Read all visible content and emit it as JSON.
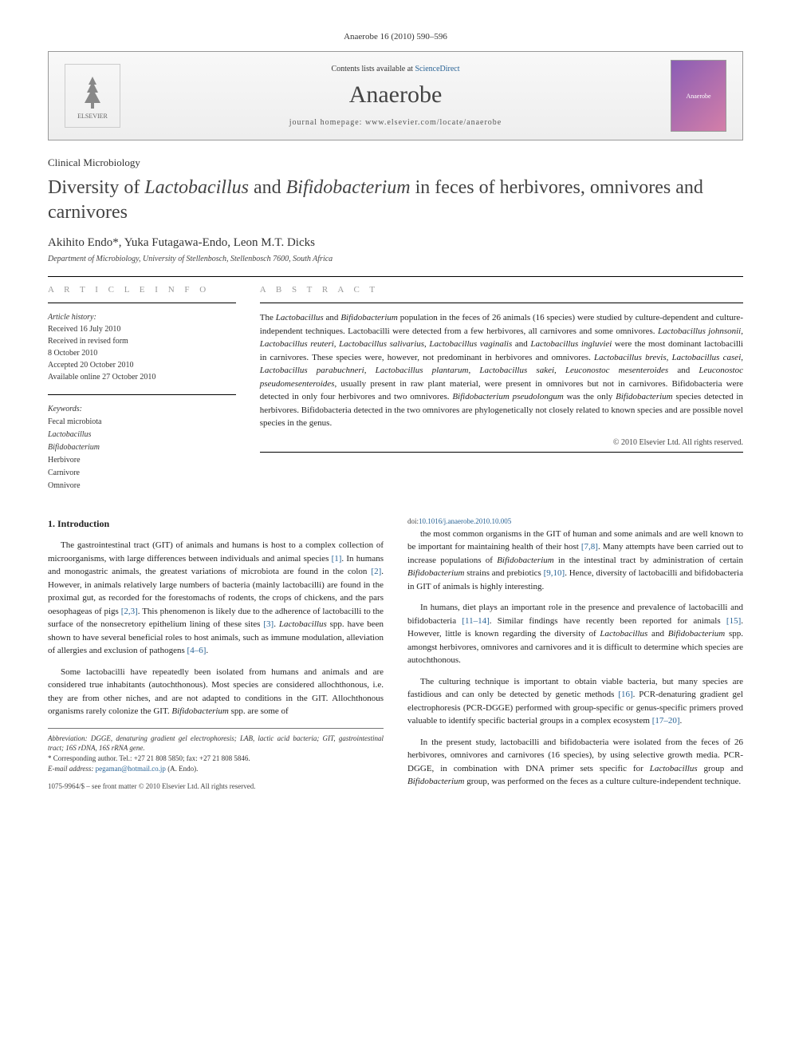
{
  "citation": "Anaerobe 16 (2010) 590–596",
  "header": {
    "contents_prefix": "Contents lists available at ",
    "contents_link": "ScienceDirect",
    "journal": "Anaerobe",
    "homepage_prefix": "journal homepage: ",
    "homepage_url": "www.elsevier.com/locate/anaerobe",
    "elsevier_label": "ELSEVIER",
    "cover_label": "Anaerobe"
  },
  "section_type": "Clinical Microbiology",
  "title_parts": {
    "p1": "Diversity of ",
    "i1": "Lactobacillus",
    "p2": " and ",
    "i2": "Bifidobacterium",
    "p3": " in feces of herbivores, omnivores and carnivores"
  },
  "authors": "Akihito Endo*, Yuka Futagawa-Endo, Leon M.T. Dicks",
  "affiliation": "Department of Microbiology, University of Stellenbosch, Stellenbosch 7600, South Africa",
  "article_info": {
    "heading": "A R T I C L E   I N F O",
    "history_label": "Article history:",
    "received": "Received 16 July 2010",
    "revised_l1": "Received in revised form",
    "revised_l2": "8 October 2010",
    "accepted": "Accepted 20 October 2010",
    "online": "Available online 27 October 2010",
    "keywords_label": "Keywords:",
    "kw1": "Fecal microbiota",
    "kw2": "Lactobacillus",
    "kw3": "Bifidobacterium",
    "kw4": "Herbivore",
    "kw5": "Carnivore",
    "kw6": "Omnivore"
  },
  "abstract": {
    "heading": "A B S T R A C T",
    "text_parts": [
      {
        "t": "The ",
        "i": false
      },
      {
        "t": "Lactobacillus",
        "i": true
      },
      {
        "t": " and ",
        "i": false
      },
      {
        "t": "Bifidobacterium",
        "i": true
      },
      {
        "t": " population in the feces of 26 animals (16 species) were studied by culture-dependent and culture-independent techniques. Lactobacilli were detected from a few herbivores, all carnivores and some omnivores. ",
        "i": false
      },
      {
        "t": "Lactobacillus johnsonii",
        "i": true
      },
      {
        "t": ", ",
        "i": false
      },
      {
        "t": "Lactobacillus reuteri",
        "i": true
      },
      {
        "t": ", ",
        "i": false
      },
      {
        "t": "Lactobacillus salivarius",
        "i": true
      },
      {
        "t": ", ",
        "i": false
      },
      {
        "t": "Lactobacillus vaginalis",
        "i": true
      },
      {
        "t": " and ",
        "i": false
      },
      {
        "t": "Lactobacillus ingluviei",
        "i": true
      },
      {
        "t": " were the most dominant lactobacilli in carnivores. These species were, however, not predominant in herbivores and omnivores. ",
        "i": false
      },
      {
        "t": "Lactobacillus brevis",
        "i": true
      },
      {
        "t": ", ",
        "i": false
      },
      {
        "t": "Lactobacillus casei",
        "i": true
      },
      {
        "t": ", ",
        "i": false
      },
      {
        "t": "Lactobacillus parabuchneri",
        "i": true
      },
      {
        "t": ", ",
        "i": false
      },
      {
        "t": "Lactobacillus plantarum",
        "i": true
      },
      {
        "t": ", ",
        "i": false
      },
      {
        "t": "Lactobacillus sakei",
        "i": true
      },
      {
        "t": ", ",
        "i": false
      },
      {
        "t": "Leuconostoc mesenteroides",
        "i": true
      },
      {
        "t": " and ",
        "i": false
      },
      {
        "t": "Leuconostoc pseudomesenteroides",
        "i": true
      },
      {
        "t": ", usually present in raw plant material, were present in omnivores but not in carnivores. Bifidobacteria were detected in only four herbivores and two omnivores. ",
        "i": false
      },
      {
        "t": "Bifidobacterium pseudolongum",
        "i": true
      },
      {
        "t": " was the only ",
        "i": false
      },
      {
        "t": "Bifidobacterium",
        "i": true
      },
      {
        "t": " species detected in herbivores. Bifidobacteria detected in the two omnivores are phylogenetically not closely related to known species and are possible novel species in the genus.",
        "i": false
      }
    ],
    "copyright": "© 2010 Elsevier Ltd. All rights reserved."
  },
  "intro": {
    "heading": "1. Introduction",
    "p1": "The gastrointestinal tract (GIT) of animals and humans is host to a complex collection of microorganisms, with large differences between individuals and animal species [1]. In humans and monogastric animals, the greatest variations of microbiota are found in the colon [2]. However, in animals relatively large numbers of bacteria (mainly lactobacilli) are found in the proximal gut, as recorded for the forestomachs of rodents, the crops of chickens, and the pars oesophageas of pigs [2,3]. This phenomenon is likely due to the adherence of lactobacilli to the surface of the nonsecretory epithelium lining of these sites [3]. Lactobacillus spp. have been shown to have several beneficial roles to host animals, such as immune modulation, alleviation of allergies and exclusion of pathogens [4–6].",
    "p2": "Some lactobacilli have repeatedly been isolated from humans and animals and are considered true inhabitants (autochthonous). Most species are considered allochthonous, i.e. they are from other niches, and are not adapted to conditions in the GIT. Allochthonous organisms rarely colonize the GIT. Bifidobacterium spp. are some of",
    "p3": "the most common organisms in the GIT of human and some animals and are well known to be important for maintaining health of their host [7,8]. Many attempts have been carried out to increase populations of Bifidobacterium in the intestinal tract by administration of certain Bifidobacterium strains and prebiotics [9,10]. Hence, diversity of lactobacilli and bifidobacteria in GIT of animals is highly interesting.",
    "p4": "In humans, diet plays an important role in the presence and prevalence of lactobacilli and bifidobacteria [11–14]. Similar findings have recently been reported for animals [15]. However, little is known regarding the diversity of Lactobacillus and Bifidobacterium spp. amongst herbivores, omnivores and carnivores and it is difficult to determine which species are autochthonous.",
    "p5": "The culturing technique is important to obtain viable bacteria, but many species are fastidious and can only be detected by genetic methods [16]. PCR-denaturing gradient gel electrophoresis (PCR-DGGE) performed with group-specific or genus-specific primers proved valuable to identify specific bacterial groups in a complex ecosystem [17–20].",
    "p6": "In the present study, lactobacilli and bifidobacteria were isolated from the feces of 26 herbivores, omnivores and carnivores (16 species), by using selective growth media. PCR-DGGE, in combination with DNA primer sets specific for Lactobacillus group and Bifidobacterium group, was performed on the feces as a culture culture-independent technique."
  },
  "footnotes": {
    "abbrev": "Abbreviation: DGGE, denaturing gradient gel electrophoresis; LAB, lactic acid bacteria; GIT, gastrointestinal tract; 16S rDNA, 16S rRNA gene.",
    "corr": "* Corresponding author. Tel.: +27 21 808 5850; fax: +27 21 808 5846.",
    "email_label": "E-mail address: ",
    "email": "pegaman@hotmail.co.jp",
    "email_who": " (A. Endo)."
  },
  "footer": {
    "front_matter": "1075-9964/$ – see front matter © 2010 Elsevier Ltd. All rights reserved.",
    "doi_label": "doi:",
    "doi": "10.1016/j.anaerobe.2010.10.005"
  },
  "colors": {
    "link": "#2a6496",
    "heading_gray": "#999999",
    "text": "#222222"
  }
}
